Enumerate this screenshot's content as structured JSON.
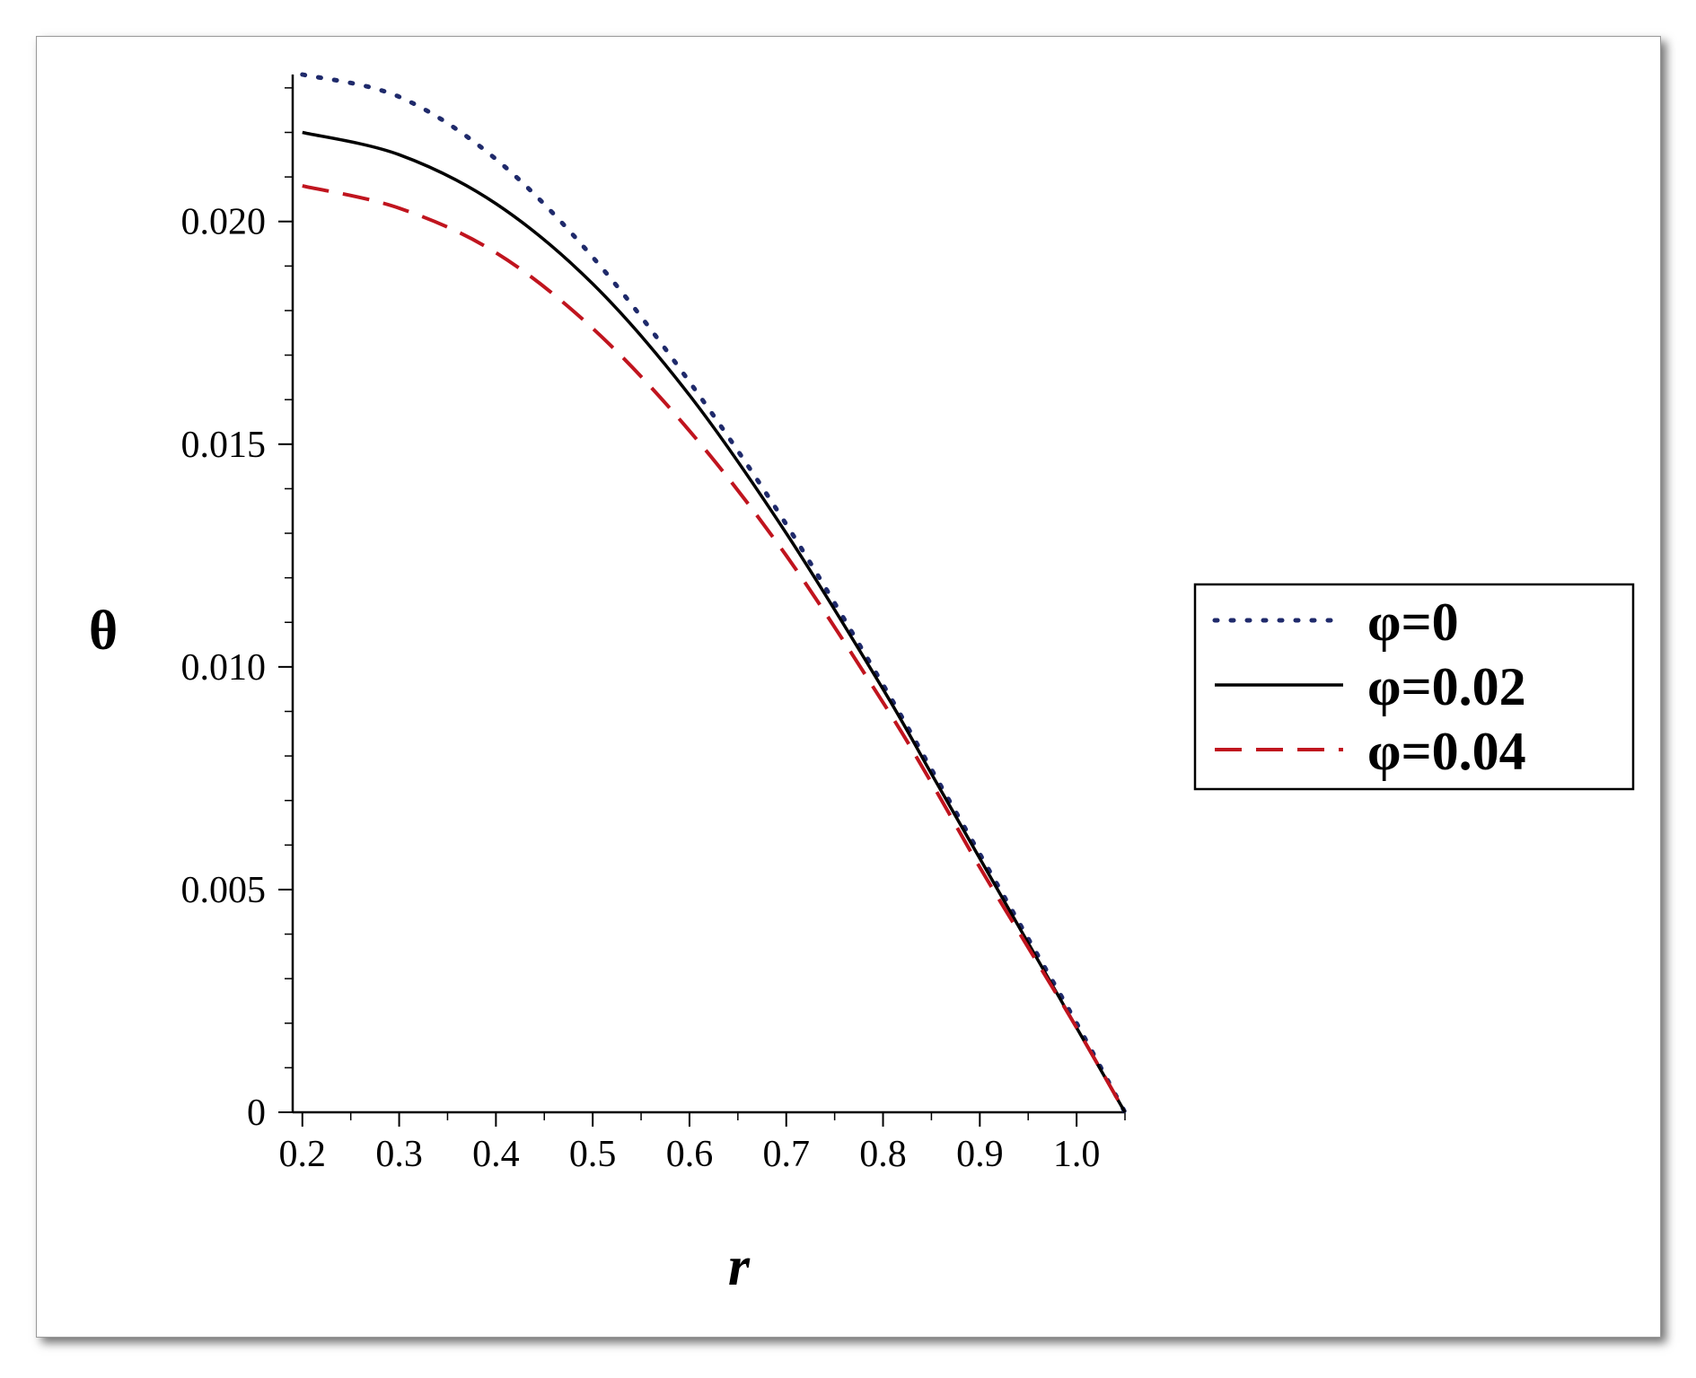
{
  "chart_data": {
    "type": "line",
    "title": "",
    "xlabel": "r",
    "ylabel": "θ",
    "xlim": [
      0.19,
      1.05
    ],
    "ylim": [
      0,
      0.0233
    ],
    "x_ticks": [
      0.2,
      0.3,
      0.4,
      0.5,
      0.6,
      0.7,
      0.8,
      0.9,
      1.0
    ],
    "x_tick_labels": [
      "0.2",
      "0.3",
      "0.4",
      "0.5",
      "0.6",
      "0.7",
      "0.8",
      "0.9",
      "1.0"
    ],
    "y_ticks": [
      0,
      0.005,
      0.01,
      0.015,
      0.02
    ],
    "y_tick_labels": [
      "0",
      "0.005",
      "0.010",
      "0.015",
      "0.020"
    ],
    "grid": false,
    "legend_position": "right",
    "x": [
      0.2,
      0.3,
      0.4,
      0.5,
      0.6,
      0.7,
      0.8,
      0.85,
      0.9,
      0.95,
      1.0,
      1.05
    ],
    "series": [
      {
        "name": "φ=0",
        "style": "dotted",
        "color": "#1f2a6b",
        "values": [
          0.0233,
          0.0228,
          0.0214,
          0.0192,
          0.0164,
          0.0132,
          0.0096,
          0.0077,
          0.0058,
          0.0039,
          0.002,
          0.0
        ]
      },
      {
        "name": "φ=0.02",
        "style": "solid",
        "color": "#000000",
        "values": [
          0.022,
          0.0215,
          0.0204,
          0.0186,
          0.0161,
          0.013,
          0.0095,
          0.0076,
          0.0057,
          0.0038,
          0.0019,
          0.0
        ]
      },
      {
        "name": "φ=0.04",
        "style": "dashed",
        "color": "#c0141e",
        "values": [
          0.0208,
          0.0203,
          0.0193,
          0.0176,
          0.0153,
          0.0125,
          0.0092,
          0.0074,
          0.0055,
          0.0037,
          0.0019,
          0.0
        ]
      }
    ]
  }
}
